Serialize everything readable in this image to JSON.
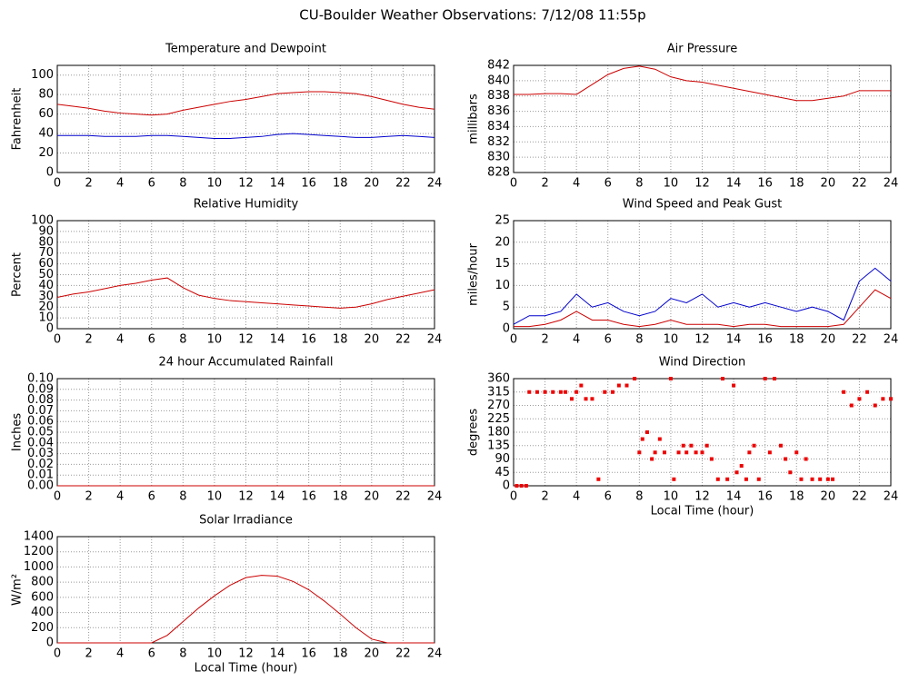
{
  "title": "CU-Boulder Weather Observations: 7/12/08 11:55p",
  "chart_data": [
    {
      "type": "line",
      "title": "Temperature and Dewpoint",
      "ylabel": "Fahrenheit",
      "x": [
        0,
        1,
        2,
        3,
        4,
        5,
        6,
        7,
        8,
        9,
        10,
        11,
        12,
        13,
        14,
        15,
        16,
        17,
        18,
        19,
        20,
        21,
        22,
        23,
        24
      ],
      "series": [
        {
          "color": "#cc0000",
          "values": [
            70,
            68,
            66,
            63,
            61,
            60,
            59,
            60,
            64,
            67,
            70,
            73,
            75,
            78,
            81,
            82,
            83,
            83,
            82,
            81,
            78,
            74,
            70,
            67,
            65
          ]
        },
        {
          "color": "#0000cc",
          "values": [
            38,
            38,
            38,
            37,
            37,
            37,
            38,
            38,
            37,
            36,
            35,
            35,
            36,
            37,
            39,
            40,
            39,
            38,
            37,
            36,
            36,
            37,
            38,
            37,
            36
          ]
        }
      ],
      "xlim": [
        0,
        24
      ],
      "xticks": [
        0,
        2,
        4,
        6,
        8,
        10,
        12,
        14,
        16,
        18,
        20,
        22,
        24
      ],
      "ylim": [
        0,
        110
      ],
      "yticks": [
        0,
        20,
        40,
        60,
        80,
        100
      ],
      "grid": true
    },
    {
      "type": "line",
      "title": "Air Pressure",
      "ylabel": "millibars",
      "x": [
        0,
        1,
        2,
        3,
        4,
        5,
        6,
        7,
        8,
        9,
        10,
        11,
        12,
        13,
        14,
        15,
        16,
        17,
        18,
        19,
        20,
        21,
        22,
        23,
        24
      ],
      "series": [
        {
          "color": "#cc0000",
          "values": [
            838.2,
            838.2,
            838.3,
            838.3,
            838.2,
            839.5,
            840.8,
            841.6,
            841.9,
            841.5,
            840.5,
            840,
            839.8,
            839.4,
            839,
            838.6,
            838.2,
            837.8,
            837.4,
            837.4,
            837.7,
            838,
            838.7,
            838.7,
            838.7
          ]
        }
      ],
      "xlim": [
        0,
        24
      ],
      "xticks": [
        0,
        2,
        4,
        6,
        8,
        10,
        12,
        14,
        16,
        18,
        20,
        22,
        24
      ],
      "ylim": [
        828,
        842
      ],
      "yticks": [
        828,
        830,
        832,
        834,
        836,
        838,
        840,
        842
      ],
      "grid": true
    },
    {
      "type": "line",
      "title": "Relative Humidity",
      "ylabel": "Percent",
      "x": [
        0,
        1,
        2,
        3,
        4,
        5,
        6,
        7,
        8,
        9,
        10,
        11,
        12,
        13,
        14,
        15,
        16,
        17,
        18,
        19,
        20,
        21,
        22,
        23,
        24
      ],
      "series": [
        {
          "color": "#cc0000",
          "values": [
            29,
            32,
            34,
            37,
            40,
            42,
            45,
            47,
            38,
            31,
            28,
            26,
            25,
            24,
            23,
            22,
            21,
            20,
            19,
            20,
            23,
            27,
            30,
            33,
            36
          ]
        }
      ],
      "xlim": [
        0,
        24
      ],
      "xticks": [
        0,
        2,
        4,
        6,
        8,
        10,
        12,
        14,
        16,
        18,
        20,
        22,
        24
      ],
      "ylim": [
        0,
        100
      ],
      "yticks": [
        0,
        10,
        20,
        30,
        40,
        50,
        60,
        70,
        80,
        90,
        100
      ],
      "grid": true
    },
    {
      "type": "line",
      "title": "Wind Speed and Peak Gust",
      "ylabel": "miles/hour",
      "x": [
        0,
        1,
        2,
        3,
        4,
        5,
        6,
        7,
        8,
        9,
        10,
        11,
        12,
        13,
        14,
        15,
        16,
        17,
        18,
        19,
        20,
        21,
        22,
        23,
        24
      ],
      "series": [
        {
          "color": "#0000cc",
          "values": [
            1,
            3,
            3,
            4,
            8,
            5,
            6,
            4,
            3,
            4,
            7,
            6,
            8,
            5,
            6,
            5,
            6,
            5,
            4,
            5,
            4,
            2,
            11,
            14,
            11
          ]
        },
        {
          "color": "#cc0000",
          "values": [
            0.5,
            0.5,
            1,
            2,
            4,
            2,
            2,
            1,
            0.5,
            1,
            2,
            1,
            1,
            1,
            0.5,
            1,
            1,
            0.5,
            0.5,
            0.5,
            0.5,
            1,
            5,
            9,
            7
          ]
        }
      ],
      "xlim": [
        0,
        24
      ],
      "xticks": [
        0,
        2,
        4,
        6,
        8,
        10,
        12,
        14,
        16,
        18,
        20,
        22,
        24
      ],
      "ylim": [
        0,
        25
      ],
      "yticks": [
        0,
        5,
        10,
        15,
        20,
        25
      ],
      "grid": true
    },
    {
      "type": "line",
      "title": "24 hour Accumulated Rainfall",
      "ylabel": "Inches",
      "x": [
        0,
        24
      ],
      "series": [
        {
          "color": "#cc0000",
          "values": [
            0,
            0
          ]
        }
      ],
      "xlim": [
        0,
        24
      ],
      "xticks": [
        0,
        2,
        4,
        6,
        8,
        10,
        12,
        14,
        16,
        18,
        20,
        22,
        24
      ],
      "ylim": [
        0,
        0.1
      ],
      "yticks": [
        {
          "value": 0,
          "label": "0.00"
        },
        {
          "value": 0.01,
          "label": "0.01"
        },
        {
          "value": 0.02,
          "label": "0.02"
        },
        {
          "value": 0.03,
          "label": "0.03"
        },
        {
          "value": 0.04,
          "label": "0.04"
        },
        {
          "value": 0.05,
          "label": "0.05"
        },
        {
          "value": 0.06,
          "label": "0.06"
        },
        {
          "value": 0.07,
          "label": "0.07"
        },
        {
          "value": 0.08,
          "label": "0.08"
        },
        {
          "value": 0.09,
          "label": "0.09"
        },
        {
          "value": 0.1,
          "label": "0.10"
        }
      ],
      "grid": true
    },
    {
      "type": "scatter",
      "title": "Wind Direction",
      "ylabel": "degrees",
      "xlabel": "Local Time (hour)",
      "x": [
        0.2,
        0.5,
        0.8,
        1,
        1.5,
        2,
        2.5,
        3,
        3.3,
        3.7,
        4,
        4.3,
        4.6,
        5,
        5.4,
        5.8,
        6.3,
        6.7,
        7.2,
        7.7,
        8,
        8.2,
        8.5,
        8.8,
        9,
        9.3,
        9.6,
        10,
        10.2,
        10.5,
        10.8,
        11,
        11.3,
        11.6,
        12,
        12.3,
        12.6,
        13,
        13.3,
        13.6,
        14,
        14.2,
        14.5,
        14.8,
        15,
        15.3,
        15.6,
        16,
        16.3,
        16.6,
        17,
        17.3,
        17.6,
        18,
        18.3,
        18.6,
        19,
        19.5,
        20,
        20.3,
        21,
        21.5,
        22,
        22.5,
        23,
        23.5,
        24
      ],
      "series": [
        {
          "color": "#ee0000",
          "values": [
            0,
            0,
            0,
            315,
            315,
            315,
            315,
            315,
            315,
            292,
            315,
            337,
            292,
            292,
            22,
            315,
            315,
            337,
            337,
            360,
            112,
            157,
            180,
            90,
            112,
            157,
            112,
            360,
            22,
            112,
            135,
            112,
            135,
            112,
            112,
            135,
            90,
            22,
            360,
            22,
            337,
            45,
            67,
            22,
            112,
            135,
            22,
            360,
            112,
            360,
            135,
            90,
            45,
            112,
            22,
            90,
            22,
            22,
            22,
            22,
            315,
            270,
            292,
            315,
            270,
            292,
            292
          ]
        }
      ],
      "xlim": [
        0,
        24
      ],
      "xticks": [
        0,
        2,
        4,
        6,
        8,
        10,
        12,
        14,
        16,
        18,
        20,
        22,
        24
      ],
      "ylim": [
        0,
        360
      ],
      "yticks": [
        0,
        45,
        90,
        135,
        180,
        225,
        270,
        315,
        360
      ],
      "grid": true
    },
    {
      "type": "line",
      "title": "Solar Irradiance",
      "ylabel": "W/m²",
      "xlabel": "Local Time (hour)",
      "x": [
        0,
        6,
        7,
        8,
        9,
        10,
        11,
        12,
        13,
        14,
        15,
        16,
        17,
        18,
        19,
        20,
        21,
        24
      ],
      "series": [
        {
          "color": "#cc0000",
          "values": [
            0,
            0,
            100,
            280,
            460,
            620,
            760,
            860,
            890,
            880,
            810,
            700,
            550,
            380,
            200,
            50,
            0,
            0
          ]
        }
      ],
      "xlim": [
        0,
        24
      ],
      "xticks": [
        0,
        2,
        4,
        6,
        8,
        10,
        12,
        14,
        16,
        18,
        20,
        22,
        24
      ],
      "ylim": [
        0,
        1400
      ],
      "yticks": [
        0,
        200,
        400,
        600,
        800,
        1000,
        1200,
        1400
      ],
      "grid": true
    }
  ]
}
